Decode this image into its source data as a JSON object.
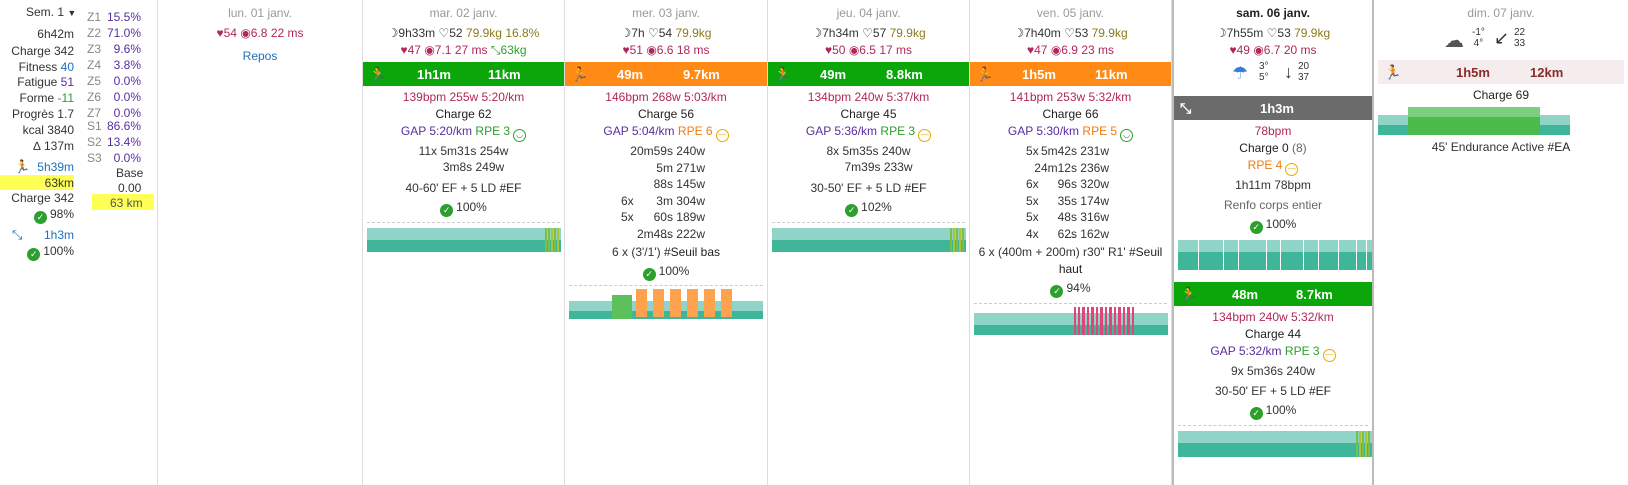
{
  "week": {
    "label": "Sem. 1",
    "stats": {
      "time": "6h42m",
      "charge": "Charge 342",
      "fitness_label": "Fitness",
      "fitness": "40",
      "fatigue_label": "Fatigue",
      "fatigue": "51",
      "forme_label": "Forme",
      "forme": "-11",
      "progres": "Progrès 1.7",
      "kcal": "kcal 3840",
      "elev": "∆ 137m",
      "run_time": "5h39m",
      "run_dist": "63km",
      "run_charge": "Charge 342",
      "run_pct": "98%",
      "str_time": "1h3m",
      "str_pct": "100%"
    },
    "zones": [
      {
        "z": "Z1",
        "v": "15.5%"
      },
      {
        "z": "Z2",
        "v": "71.0%"
      },
      {
        "z": "Z3",
        "v": "9.6%"
      },
      {
        "z": "Z4",
        "v": "3.8%"
      },
      {
        "z": "Z5",
        "v": "0.0%"
      },
      {
        "z": "Z6",
        "v": "0.0%"
      },
      {
        "z": "Z7",
        "v": "0.0%"
      }
    ],
    "szones": [
      {
        "z": "S1",
        "v": "86.6%"
      },
      {
        "z": "S2",
        "v": "13.4%"
      },
      {
        "z": "S3",
        "v": "0.0%"
      }
    ],
    "base_label": "Base",
    "base_val": "0.00",
    "base_km": "63 km"
  },
  "days": {
    "mon": {
      "date": "lun. 01 janv.",
      "hr": "54",
      "hrv": "6.8",
      "ms": "22 ms",
      "rest": "Repos"
    },
    "tue": {
      "date": "mar. 02 janv.",
      "sleep": "9h33m",
      "hr": "52",
      "weight": "79.9kg",
      "fat": "16.8%",
      "hr2": "47",
      "hrv": "7.1",
      "ms": "27 ms",
      "mass": "63kg",
      "dur": "1h1m",
      "dist": "11km",
      "line1": "139bpm 255w 5:20/km",
      "charge": "Charge 62",
      "gap": "GAP 5:20/km",
      "rpe": "RPE 3",
      "steps": [
        "11x 5m31s 254w",
        "3m8s 249w"
      ],
      "desc": "40-60' EF + 5 LD",
      "tag": "#EF",
      "pct": "100%"
    },
    "wed": {
      "date": "mer. 03 janv.",
      "sleep": "7h",
      "hr": "54",
      "weight": "79.9kg",
      "hr2": "51",
      "hrv": "6.6",
      "ms": "18 ms",
      "dur": "49m",
      "dist": "9.7km",
      "line1": "146bpm 268w 5:03/km",
      "charge": "Charge 56",
      "gap": "GAP 5:04/km",
      "rpe": "RPE 6",
      "steps": [
        {
          "n": "",
          "t": "20m59s 240w"
        },
        {
          "n": "",
          "t": "5m 271w"
        },
        {
          "n": "",
          "t": "88s 145w"
        },
        {
          "n": "6x",
          "t": "3m 304w"
        },
        {
          "n": "5x",
          "t": "60s 189w"
        },
        {
          "n": "",
          "t": "2m48s 222w"
        }
      ],
      "more": "...",
      "desc": "6 x (3'/1')",
      "tag": "#Seuil bas",
      "pct": "100%"
    },
    "thu": {
      "date": "jeu. 04 janv.",
      "sleep": "7h34m",
      "hr": "57",
      "weight": "79.9kg",
      "hr2": "50",
      "hrv": "6.5",
      "ms": "17 ms",
      "dur": "49m",
      "dist": "8.8km",
      "line1": "134bpm 240w 5:37/km",
      "charge": "Charge 45",
      "gap": "GAP 5:36/km",
      "rpe": "RPE 3",
      "steps": [
        "8x 5m35s 240w",
        "7m39s 233w"
      ],
      "desc": "30-50' EF + 5 LD",
      "tag": "#EF",
      "pct": "102%"
    },
    "fri": {
      "date": "ven. 05 janv.",
      "sleep": "7h40m",
      "hr": "53",
      "weight": "79.9kg",
      "hr2": "47",
      "hrv": "6.9",
      "ms": "23 ms",
      "dur": "1h5m",
      "dist": "11km",
      "line1": "141bpm 253w 5:32/km",
      "charge": "Charge 66",
      "gap": "GAP 5:30/km",
      "rpe": "RPE 5",
      "steps": [
        {
          "n": "5x",
          "t": "5m42s 231w"
        },
        {
          "n": "",
          "t": "24m12s 236w"
        },
        {
          "n": "6x",
          "t": "96s 320w"
        },
        {
          "n": "5x",
          "t": "35s 174w"
        },
        {
          "n": "5x",
          "t": "48s 316w"
        },
        {
          "n": "4x",
          "t": "62s 162w"
        }
      ],
      "more": "...",
      "desc": "6 x (400m + 200m) r30\" R1'",
      "tag": "#Seuil",
      "tag2": "haut",
      "pct": "94%"
    },
    "sat": {
      "date": "sam. 06 janv.",
      "sleep": "7h55m",
      "hr": "53",
      "weight": "79.9kg",
      "hr2": "49",
      "hrv": "6.7",
      "ms": "20 ms",
      "wt_lo": "3°",
      "wt_hi": "5°",
      "wind1": "20",
      "wind2": "37",
      "str_dur": "1h3m",
      "str_bpm": "78bpm",
      "str_charge": "Charge 0",
      "str_charge2": "(8)",
      "str_rpe": "RPE 4",
      "str_line": "1h11m 78bpm",
      "str_desc": "Renfo corps entier",
      "str_pct": "100%",
      "dur": "48m",
      "dist": "8.7km",
      "line1": "134bpm 240w 5:32/km",
      "charge": "Charge 44",
      "gap": "GAP 5:32/km",
      "rpe": "RPE 3",
      "steps": [
        "9x 5m36s 240w"
      ],
      "desc": "30-50' EF + 5 LD",
      "tag": "#EF",
      "pct": "100%"
    },
    "sun": {
      "date": "dim. 07 janv.",
      "wt_lo": "-1°",
      "wt_hi": "4°",
      "wind1": "22",
      "wind2": "33",
      "dur": "1h5m",
      "dist": "12km",
      "charge": "Charge 69",
      "desc": "45' Endurance Active",
      "tag": "#EA"
    }
  }
}
